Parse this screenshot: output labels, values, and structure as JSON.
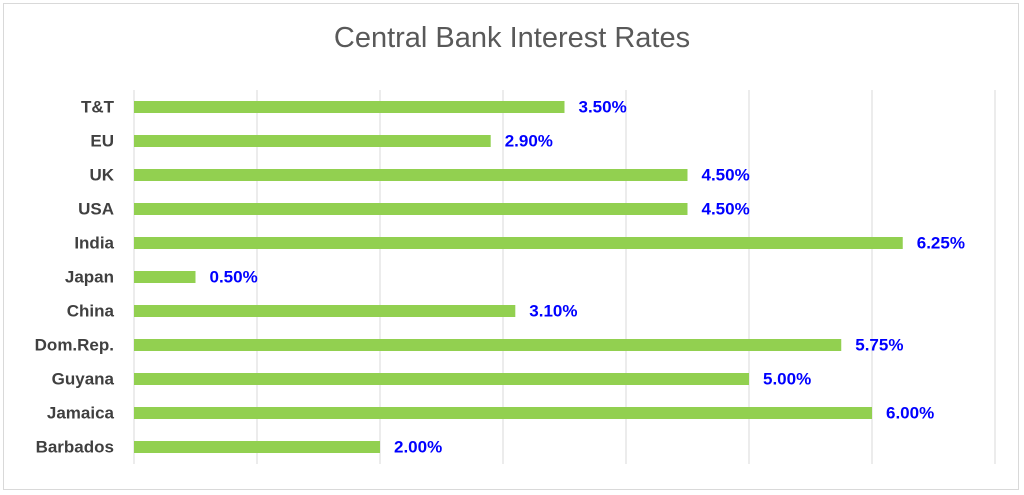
{
  "chart_data": {
    "type": "bar",
    "orientation": "horizontal",
    "title": "Central Bank Interest Rates",
    "categories": [
      "T&T",
      "EU",
      "UK",
      "USA",
      "India",
      "Japan",
      "China",
      "Dom.Rep.",
      "Guyana",
      "Jamaica",
      "Barbados"
    ],
    "values": [
      3.5,
      2.9,
      4.5,
      4.5,
      6.25,
      0.5,
      3.1,
      5.75,
      5.0,
      6.0,
      2.0
    ],
    "value_labels": [
      "3.50%",
      "2.90%",
      "4.50%",
      "4.50%",
      "6.25%",
      "0.50%",
      "3.10%",
      "5.75%",
      "5.00%",
      "6.00%",
      "2.00%"
    ],
    "xlim": [
      0,
      7
    ],
    "x_gridlines": true,
    "x_axis_tick_labels_visible": false,
    "legend": "none",
    "bar_color": "#92d050",
    "label_color": "#0000ff"
  }
}
